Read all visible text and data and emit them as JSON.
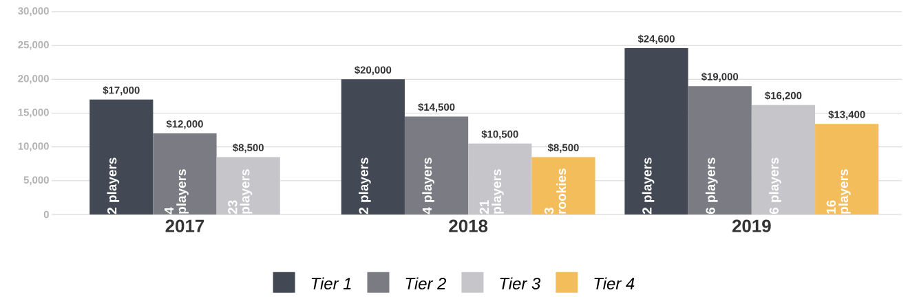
{
  "chart_data": {
    "type": "bar",
    "categories": [
      "2017",
      "2018",
      "2019"
    ],
    "series": [
      {
        "name": "Tier 1",
        "color": "#424955",
        "values": [
          17000,
          20000,
          24600
        ],
        "value_labels": [
          "$17,000",
          "$20,000",
          "$24,600"
        ]
      },
      {
        "name": "Tier 2",
        "color": "#7b7b84",
        "values": [
          12000,
          14500,
          19000
        ],
        "value_labels": [
          "$12,000",
          "$14,500",
          "$19,000"
        ]
      },
      {
        "name": "Tier 3",
        "color": "#c6c6ca",
        "values": [
          8500,
          10500,
          16200
        ],
        "value_labels": [
          "$8,500",
          "$10,500",
          "$16,200"
        ]
      },
      {
        "name": "Tier 4",
        "color": "#f3bd5c",
        "values": [
          null,
          8500,
          13400
        ],
        "value_labels": [
          null,
          "$8,500",
          "$13,400"
        ]
      }
    ],
    "annotations": [
      "2 players",
      "2 players",
      "2 players",
      "4 players",
      "4 players",
      "6 players",
      "23 players",
      "21 players",
      "6 players",
      "3 rookies",
      "16 players"
    ],
    "ylim": [
      0,
      30000
    ],
    "yticks": [
      0,
      {
        "value": 5000,
        "label": "5,000"
      },
      {
        "value": 10000,
        "label": "10,000"
      },
      {
        "value": 15000,
        "label": "15,000"
      },
      {
        "value": 20000,
        "label": "20,000"
      },
      {
        "value": 25000,
        "label": "25,000"
      },
      {
        "value": 30000,
        "label": "30,000"
      }
    ],
    "grid": "y",
    "legend": "bottom"
  }
}
